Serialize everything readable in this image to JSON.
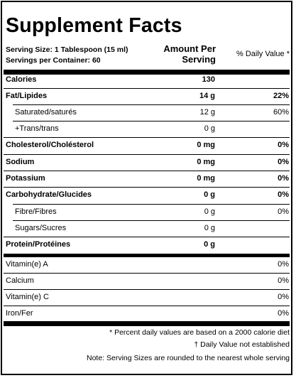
{
  "panel": {
    "title": "Supplement Facts",
    "serving_size": "Serving Size: 1 Tablespoon (15 ml)",
    "servings_per_container": "Servings per Container: 60",
    "amount_header_line1": "Amount Per",
    "amount_header_line2": "Serving",
    "dv_header": "% Daily Value *"
  },
  "nutrients": [
    {
      "name": "Calories",
      "amount": "130",
      "dv": ""
    },
    {
      "name": "Fat/Lipides",
      "amount": "14 g",
      "dv": "22%"
    },
    {
      "name": "Saturated/saturés",
      "amount": "12 g",
      "dv": "60%"
    },
    {
      "name": "+Trans/trans",
      "amount": "0 g",
      "dv": ""
    },
    {
      "name": "Cholesterol/Cholésterol",
      "amount": "0 mg",
      "dv": "0%"
    },
    {
      "name": "Sodium",
      "amount": "0 mg",
      "dv": "0%"
    },
    {
      "name": "Potassium",
      "amount": "0 mg",
      "dv": "0%"
    },
    {
      "name": "Carbohydrate/Glucides",
      "amount": "0 g",
      "dv": "0%"
    },
    {
      "name": "Fibre/Fibres",
      "amount": "0 g",
      "dv": "0%"
    },
    {
      "name": "Sugars/Sucres",
      "amount": "0 g",
      "dv": ""
    },
    {
      "name": "Protein/Protéines",
      "amount": "0 g",
      "dv": ""
    }
  ],
  "vitamins": [
    {
      "name": "Vitamin(e) A",
      "dv": "0%"
    },
    {
      "name": "Calcium",
      "dv": "0%"
    },
    {
      "name": "Vitamin(e) C",
      "dv": "0%"
    },
    {
      "name": "Iron/Fer",
      "dv": "0%"
    }
  ],
  "footnotes": {
    "percent_note": "* Percent daily values are based on a 2000 calorie diet",
    "dv_note": "† Daily Value not established",
    "rounding_note": "Note: Serving Sizes are rounded to the nearest whole serving"
  }
}
